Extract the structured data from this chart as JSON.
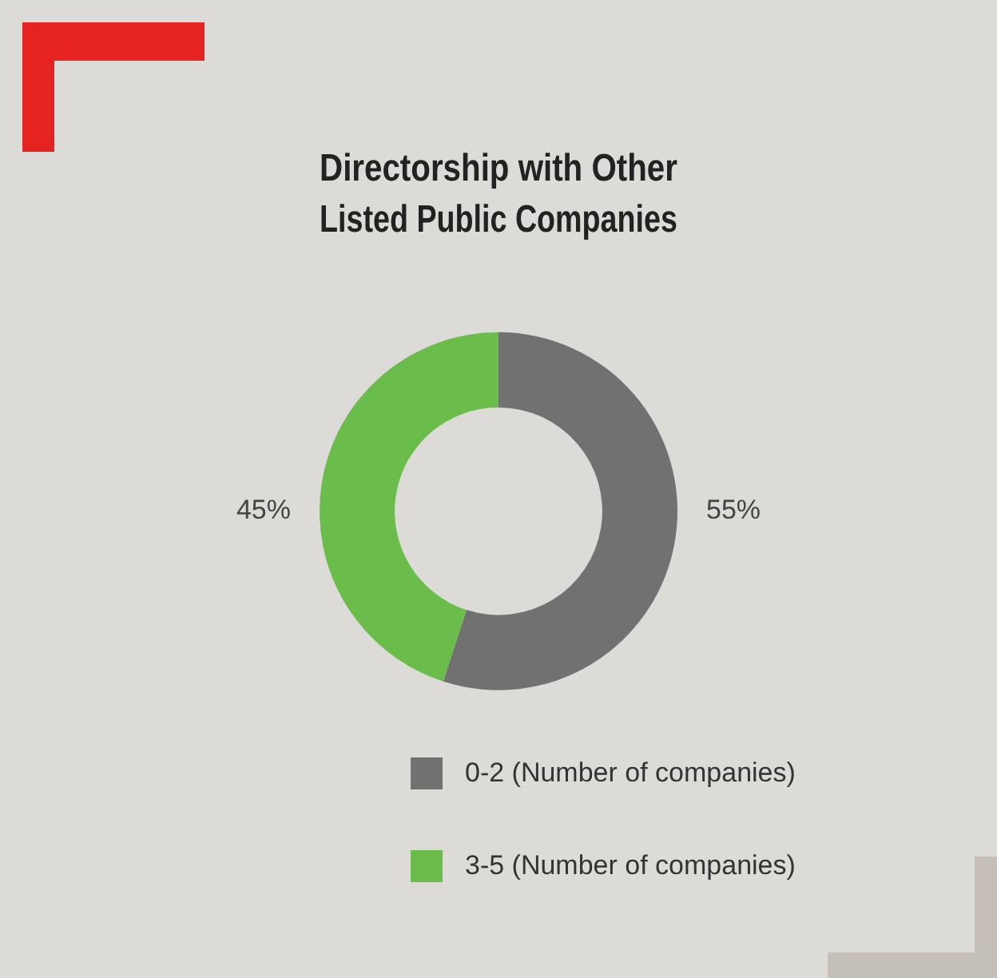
{
  "chart_data": {
    "type": "donut",
    "title": "Directorship with Other\nListed Public Companies",
    "categories": [
      "0-2 (Number of companies)",
      "3-5 (Number of companies)"
    ],
    "values": [
      55,
      45
    ],
    "colors": [
      "#707170",
      "#6bbd4b"
    ],
    "value_labels": [
      "55%",
      "45%"
    ],
    "legend": "bottom"
  }
}
